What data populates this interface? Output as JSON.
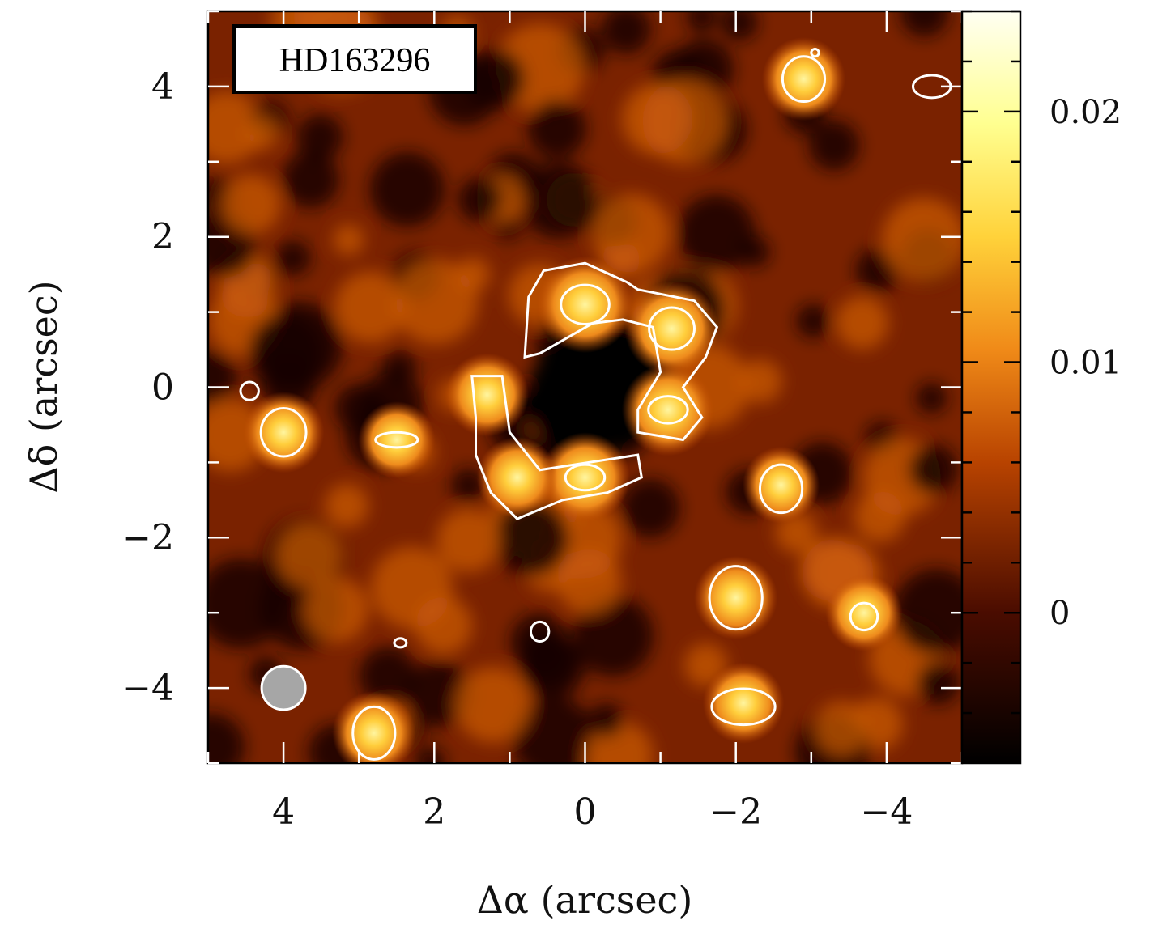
{
  "chart_data": {
    "type": "heatmap",
    "title": "",
    "target_label": "HD163296",
    "xlabel": "Δα (arcsec)",
    "ylabel": "Δδ (arcsec)",
    "xlim": [
      5,
      -5
    ],
    "ylim": [
      -5,
      5
    ],
    "x_ticks": [
      4,
      2,
      0,
      -2,
      -4
    ],
    "x_tick_labels": [
      "4",
      "2",
      "0",
      "−2",
      "−4"
    ],
    "y_ticks": [
      -4,
      -2,
      0,
      2,
      4
    ],
    "y_tick_labels": [
      "−4",
      "−2",
      "0",
      "2",
      "4"
    ],
    "colorbar": {
      "range": [
        -0.006,
        0.024
      ],
      "ticks": [
        0,
        0.01,
        0.02
      ],
      "tick_labels": [
        "0",
        "0.01",
        "0.02"
      ],
      "colors": [
        "#000000",
        "#5a1000",
        "#c04a00",
        "#f59018",
        "#ffd23a",
        "#ffff90",
        "#fffff2"
      ]
    },
    "contour_color": "#ffffff",
    "beam": {
      "x": 4.0,
      "y": -4.0,
      "major_arcsec": 0.68,
      "minor_arcsec": 0.58,
      "color": "#a6a6a6"
    },
    "emission_blobs": [
      {
        "x": 0.0,
        "y": 1.1,
        "peak": 0.02
      },
      {
        "x": -1.15,
        "y": 0.78,
        "peak": 0.019
      },
      {
        "x": -1.1,
        "y": -0.3,
        "peak": 0.018
      },
      {
        "x": 0.0,
        "y": -1.2,
        "peak": 0.017
      },
      {
        "x": 1.3,
        "y": -0.1,
        "peak": 0.014
      },
      {
        "x": 0.9,
        "y": -1.2,
        "peak": 0.013
      },
      {
        "x": -2.0,
        "y": -2.8,
        "peak": 0.014
      },
      {
        "x": -2.1,
        "y": -4.2,
        "peak": 0.013
      },
      {
        "x": -2.9,
        "y": 4.1,
        "peak": 0.014
      },
      {
        "x": 4.0,
        "y": -0.6,
        "peak": 0.013
      },
      {
        "x": 2.8,
        "y": -4.6,
        "peak": 0.014
      },
      {
        "x": 2.5,
        "y": -0.7,
        "peak": 0.011
      },
      {
        "x": -2.6,
        "y": -1.3,
        "peak": 0.011
      },
      {
        "x": -3.7,
        "y": -3.0,
        "peak": 0.011
      }
    ]
  }
}
